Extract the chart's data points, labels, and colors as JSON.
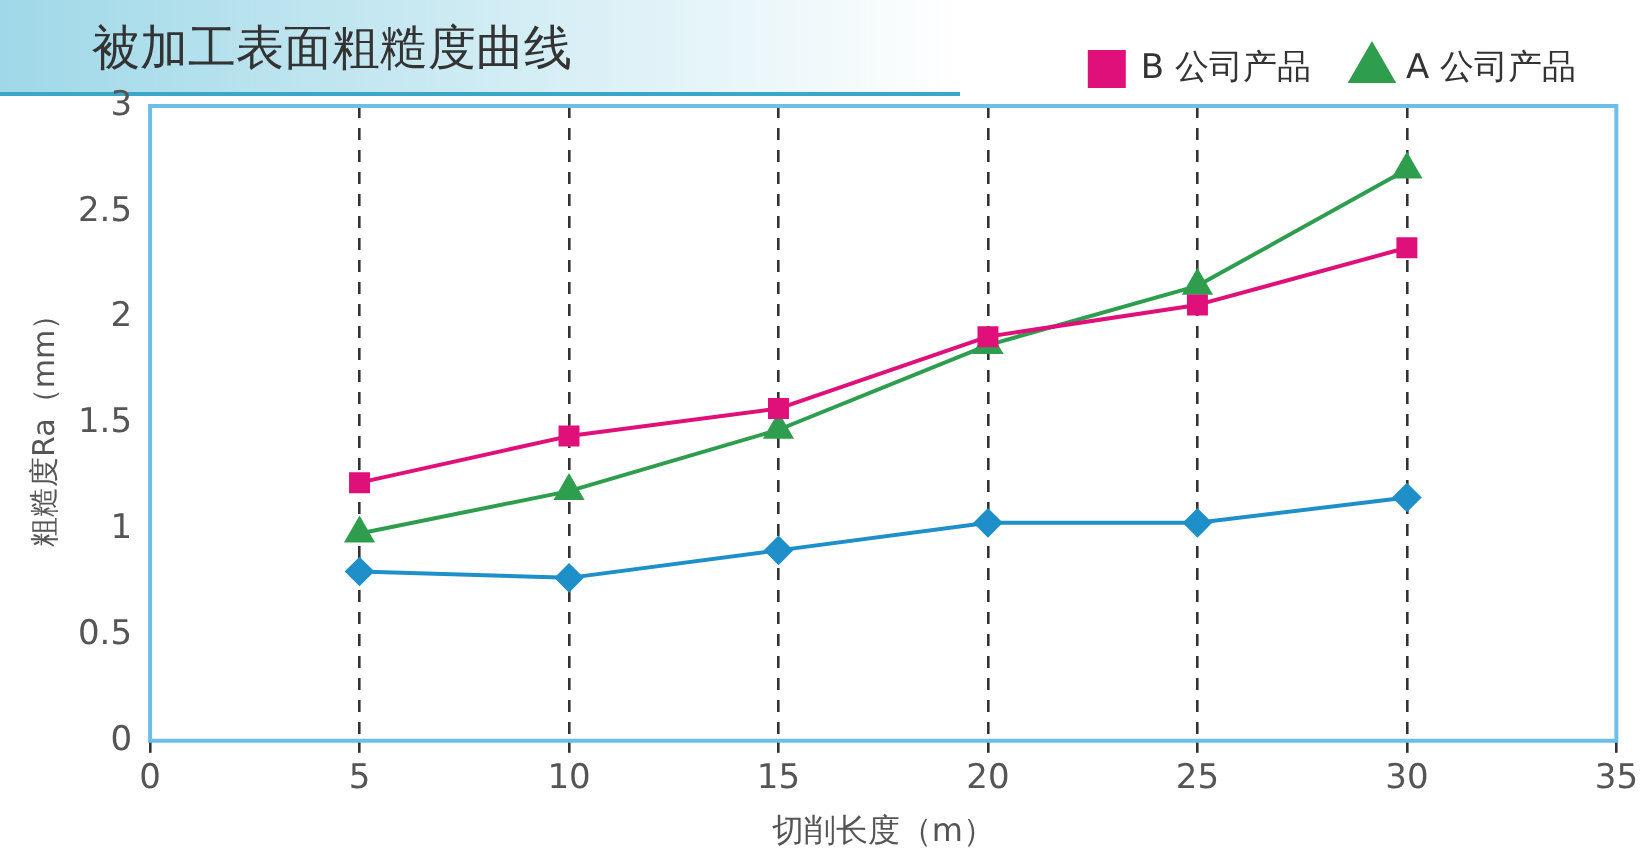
{
  "chart_data": {
    "type": "line",
    "title": "被加工表面粗糙度曲线",
    "xlabel": "切削长度（m）",
    "ylabel": "粗糙度Ra（mm）",
    "x": [
      5,
      10,
      15,
      20,
      25,
      30
    ],
    "series": [
      {
        "color": "#1e8fc8",
        "marker": "diamond",
        "values": [
          0.8,
          0.77,
          0.9,
          1.03,
          1.03,
          1.15
        ]
      },
      {
        "name": "A 公司产品",
        "color": "#2e9e4e",
        "marker": "triangle",
        "values": [
          0.98,
          1.18,
          1.47,
          1.87,
          2.15,
          2.7
        ]
      },
      {
        "name": "B 公司产品",
        "color": "#e0107a",
        "marker": "square",
        "values": [
          1.22,
          1.44,
          1.57,
          1.91,
          2.06,
          2.33
        ]
      }
    ],
    "xlim": [
      0,
      35
    ],
    "xticks": [
      0,
      5,
      10,
      15,
      20,
      25,
      30,
      35
    ],
    "ylim": [
      0,
      3
    ],
    "yticks": [
      0,
      0.5,
      1,
      1.5,
      2,
      2.5,
      3
    ],
    "grid": "x",
    "legend": "top right",
    "line_style": "solid"
  }
}
